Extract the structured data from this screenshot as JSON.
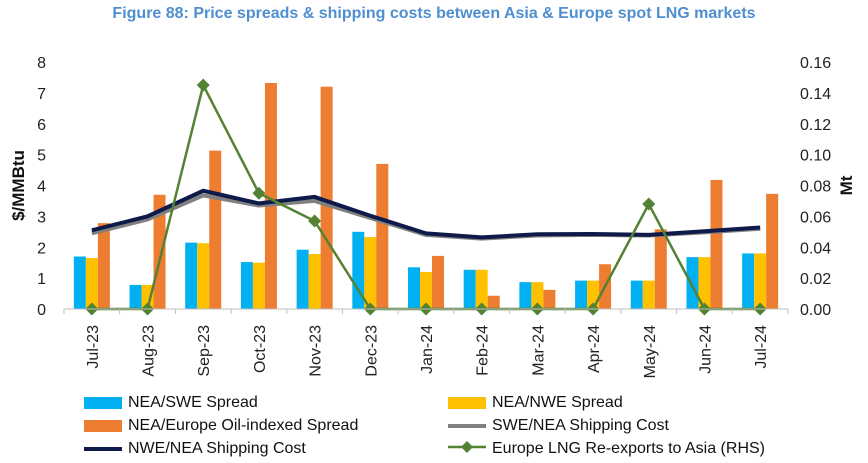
{
  "chart_data": {
    "type": "bar",
    "title": "Figure 88: Price spreads & shipping costs between Asia & Europe spot LNG markets",
    "ylabel": "$/MMBtu",
    "ylabel_right": "Mt",
    "ylim": [
      0,
      8
    ],
    "ylim_right": [
      0,
      0.16
    ],
    "yticks": [
      "0",
      "1",
      "2",
      "3",
      "4",
      "5",
      "6",
      "7",
      "8"
    ],
    "yticks_right": [
      "0.00",
      "0.02",
      "0.04",
      "0.06",
      "0.08",
      "0.10",
      "0.12",
      "0.14",
      "0.16"
    ],
    "categories": [
      "Jul-23",
      "Aug-23",
      "Sep-23",
      "Oct-23",
      "Nov-23",
      "Dec-23",
      "Jan-24",
      "Feb-24",
      "Mar-24",
      "Apr-24",
      "May-24",
      "Jun-24",
      "Jul-24"
    ],
    "series": [
      {
        "name": "NEA/SWE Spread",
        "kind": "bar",
        "color": "#00b0f0",
        "values": [
          1.7,
          0.78,
          2.15,
          1.52,
          1.92,
          2.5,
          1.35,
          1.27,
          0.87,
          0.92,
          0.92,
          1.68,
          1.8
        ]
      },
      {
        "name": "NEA/NWE Spread",
        "kind": "bar",
        "color": "#ffc000",
        "values": [
          1.65,
          0.78,
          2.13,
          1.5,
          1.78,
          2.33,
          1.2,
          1.27,
          0.87,
          0.92,
          0.92,
          1.68,
          1.8
        ]
      },
      {
        "name": "NEA/Europe Oil-indexed Spread",
        "kind": "bar",
        "color": "#ed7d31",
        "values": [
          2.78,
          3.7,
          5.13,
          7.32,
          7.2,
          4.7,
          1.72,
          0.43,
          0.62,
          1.45,
          2.58,
          4.18,
          3.73
        ]
      },
      {
        "name": "SWE/NEA Shipping Cost",
        "kind": "line",
        "color": "#808080",
        "values": [
          2.45,
          2.9,
          3.68,
          3.35,
          3.5,
          2.95,
          2.4,
          2.28,
          2.38,
          2.4,
          2.38,
          2.48,
          2.6
        ]
      },
      {
        "name": "NWE/NEA Shipping Cost",
        "kind": "line",
        "color": "#0d1a4a",
        "values": [
          2.55,
          3.0,
          3.83,
          3.42,
          3.63,
          3.02,
          2.45,
          2.32,
          2.42,
          2.43,
          2.4,
          2.52,
          2.64
        ]
      },
      {
        "name": "Europe LNG Re-exports to Asia (RHS)",
        "kind": "line-marker",
        "axis": "right",
        "color": "#548235",
        "values": [
          0.0,
          0.0,
          0.145,
          0.075,
          0.057,
          0.0,
          0.0,
          0.0,
          0.0,
          0.0,
          0.068,
          0.0,
          0.0
        ]
      }
    ],
    "legend_position": "bottom"
  }
}
